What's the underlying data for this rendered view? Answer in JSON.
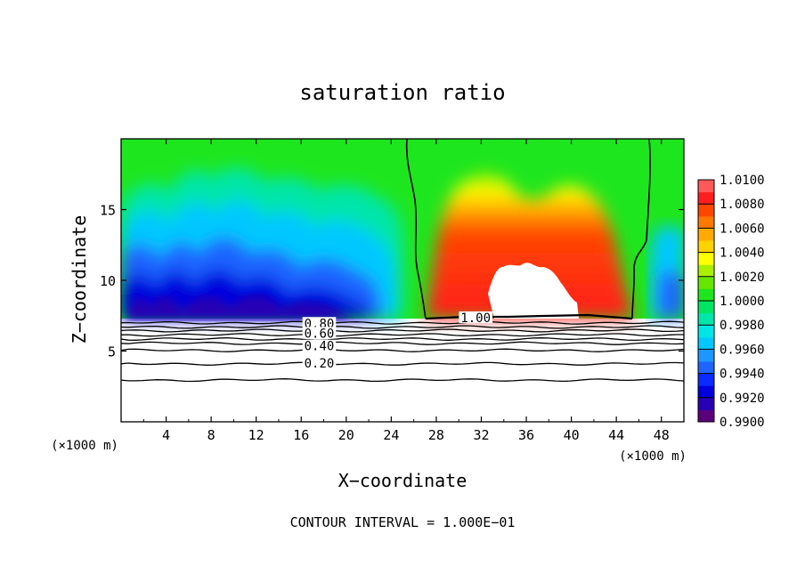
{
  "chart_data": {
    "type": "heatmap",
    "title": "saturation ratio",
    "xlabel": "X−coordinate",
    "ylabel": "Z−coordinate",
    "x_unit_left": "(×1000 m)",
    "x_unit_right": "(×1000 m)",
    "xlim": [
      0,
      50
    ],
    "ylim": [
      0,
      20
    ],
    "xticks": [
      4,
      8,
      12,
      16,
      20,
      24,
      28,
      32,
      36,
      40,
      44,
      48
    ],
    "xtick_labels": [
      "4",
      "8",
      "12",
      "16",
      "20",
      "24",
      "28",
      "32",
      "36",
      "40",
      "44",
      "48"
    ],
    "yticks": [
      5,
      10,
      15
    ],
    "ytick_labels": [
      "5",
      "10",
      "15"
    ],
    "colorbar": {
      "min": 0.99,
      "max": 1.01,
      "levels": [
        0.99,
        0.991,
        0.992,
        0.993,
        0.994,
        0.995,
        0.996,
        0.997,
        0.998,
        0.999,
        1.0,
        1.001,
        1.002,
        1.003,
        1.004,
        1.005,
        1.006,
        1.007,
        1.008,
        1.009,
        1.01
      ],
      "colors": [
        "#5a007a",
        "#2800b4",
        "#0000dc",
        "#0a2aff",
        "#1e64ff",
        "#1e96ff",
        "#00c8ff",
        "#00e6e6",
        "#00e6aa",
        "#00e664",
        "#1ee61e",
        "#64e600",
        "#aaf000",
        "#ffff00",
        "#ffd200",
        "#ffaa00",
        "#ff7800",
        "#ff4600",
        "#ff1e1e",
        "#ff5a5a",
        "#ff9696"
      ],
      "labels": [
        {
          "value": 1.01,
          "text": "1.0100"
        },
        {
          "value": 1.008,
          "text": "1.0080"
        },
        {
          "value": 1.006,
          "text": "1.0060"
        },
        {
          "value": 1.004,
          "text": "1.0040"
        },
        {
          "value": 1.002,
          "text": "1.0020"
        },
        {
          "value": 1.0,
          "text": "1.0000"
        },
        {
          "value": 0.998,
          "text": "0.9980"
        },
        {
          "value": 0.996,
          "text": "0.9960"
        },
        {
          "value": 0.994,
          "text": "0.9940"
        },
        {
          "value": 0.992,
          "text": "0.9920"
        },
        {
          "value": 0.99,
          "text": "0.9900"
        }
      ]
    },
    "contour_labels": [
      {
        "text": "0.80",
        "x": 17.6,
        "z": 6.9
      },
      {
        "text": "0.60",
        "x": 17.6,
        "z": 6.2
      },
      {
        "text": "0.40",
        "x": 17.6,
        "z": 5.3
      },
      {
        "text": "0.20",
        "x": 17.6,
        "z": 4.1
      },
      {
        "text": "1.00",
        "x": 31.5,
        "z": 7.3
      }
    ],
    "contour_lines_z": [
      7.0,
      6.7,
      6.45,
      6.15,
      5.85,
      5.55,
      5.05,
      4.1,
      2.95
    ],
    "saturation_contour_left_x": [
      25.9,
      26.5,
      26.3,
      26.8,
      27.0
    ],
    "saturation_contour_right_x": [
      47.0,
      46.4,
      45.9,
      45.6,
      45.3
    ],
    "footer": "CONTOUR INTERVAL =  1.000E−01"
  }
}
